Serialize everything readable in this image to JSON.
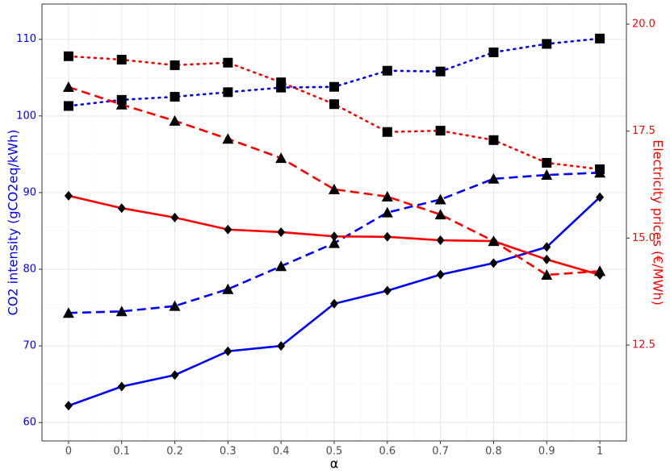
{
  "chart_data": {
    "type": "line",
    "x_label": "α",
    "y_label": "CO2 intensity (gCO2eq/kWh)",
    "y2_label": "Electricity prices (€/MWh)",
    "x": [
      0,
      0.1,
      0.2,
      0.3,
      0.4,
      0.5,
      0.6,
      0.7,
      0.8,
      0.9,
      1
    ],
    "xlim": [
      -0.05,
      1.05
    ],
    "xticks": [
      0,
      0.1,
      0.2,
      0.3,
      0.4,
      0.5,
      0.6,
      0.7,
      0.8,
      0.9,
      1
    ],
    "ylim": [
      57.6,
      114.6
    ],
    "yticks": [
      60,
      70,
      80,
      90,
      100,
      110
    ],
    "y2lim": [
      10.26,
      20.47
    ],
    "y2ticks": [
      12.5,
      {
        "value": 15,
        "label": "15.0"
      },
      17.5,
      {
        "value": 20,
        "label": "20.0"
      }
    ],
    "y_color": "#0000ff",
    "y2_color": "#ff0000",
    "grid": true,
    "minor_grid": true,
    "series": [
      {
        "color": "#0000ff",
        "dash": "solid",
        "marker": "diamond",
        "values": [
          62.2,
          64.7,
          66.2,
          69.3,
          70.0,
          75.5,
          77.2,
          79.3,
          80.8,
          82.9,
          89.4
        ]
      },
      {
        "color": "#0000ff",
        "dash": "dashed",
        "marker": "triangle",
        "values": [
          74.3,
          74.5,
          75.2,
          77.4,
          80.4,
          83.4,
          87.4,
          89.1,
          91.8,
          92.3,
          92.6
        ]
      },
      {
        "color": "#0000ff",
        "dash": "dotted",
        "marker": "square",
        "values": [
          101.3,
          102.1,
          102.5,
          103.1,
          103.7,
          103.8,
          105.9,
          105.8,
          108.3,
          109.4,
          110.1
        ]
      },
      {
        "color": "#ff0000",
        "dash": "solid",
        "marker": "diamond",
        "axis": "y2",
        "values": [
          15.99,
          15.7,
          15.48,
          15.2,
          15.14,
          15.04,
          15.03,
          14.95,
          14.93,
          14.5,
          14.14
        ]
      },
      {
        "color": "#ff0000",
        "dash": "dashed",
        "marker": "triangle",
        "axis": "y2",
        "values": [
          18.53,
          18.12,
          17.74,
          17.32,
          16.87,
          16.14,
          15.97,
          15.55,
          14.93,
          14.14,
          14.23
        ]
      },
      {
        "color": "#ff0000",
        "dash": "dotted",
        "marker": "square",
        "axis": "y2",
        "values": [
          19.25,
          19.17,
          19.04,
          19.1,
          18.64,
          18.13,
          17.48,
          17.51,
          17.29,
          16.76,
          16.61
        ]
      }
    ]
  }
}
